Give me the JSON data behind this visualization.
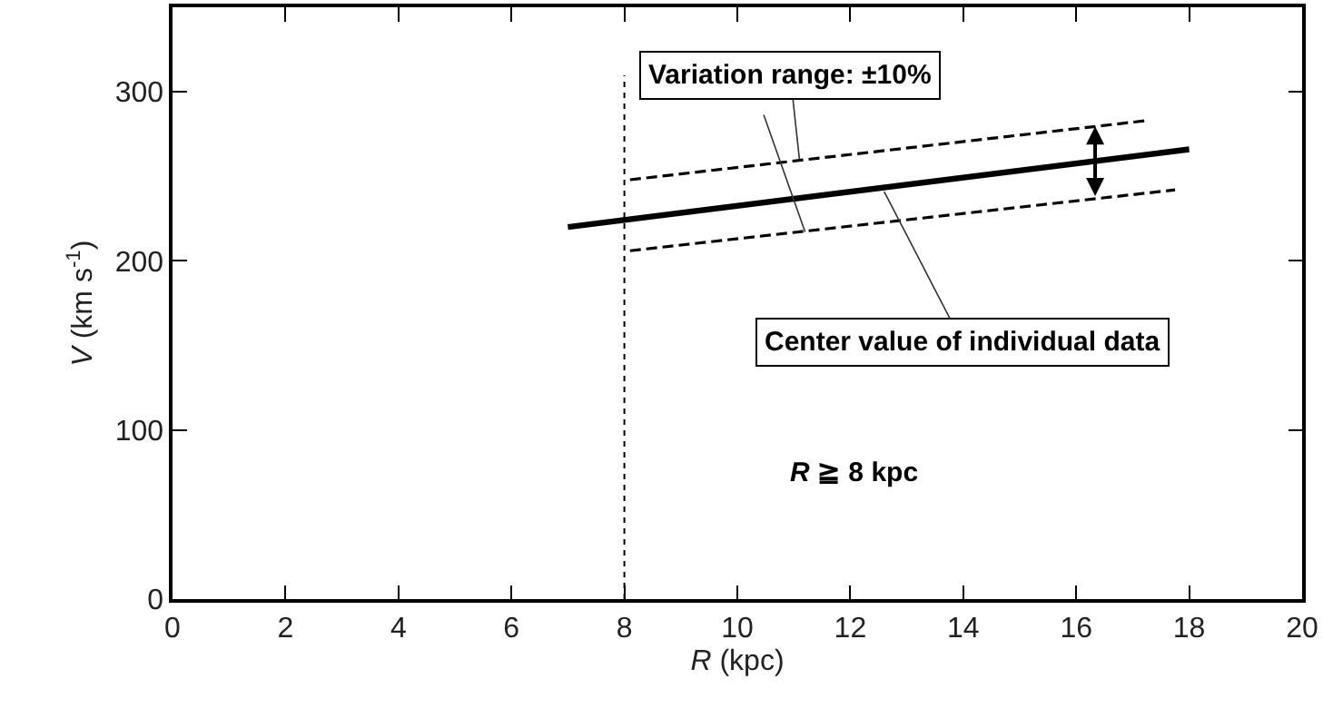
{
  "chart_data": {
    "type": "line",
    "xlabel": "R (kpc)",
    "ylabel": "V (km s$^{-1}$)",
    "xlim": [
      0,
      20
    ],
    "xticks": [
      0,
      2,
      4,
      6,
      8,
      10,
      12,
      14,
      16,
      18,
      20
    ],
    "ylim": [
      0,
      350
    ],
    "yticks": [
      0,
      100,
      200,
      300
    ],
    "series": [
      {
        "color": "#000000",
        "x": [
          7,
          18
        ],
        "values": [
          220,
          266
        ],
        "line_style": "solid"
      },
      {
        "color": "#000000",
        "x": [
          8.1,
          17.25
        ],
        "values": [
          248,
          283
        ],
        "line_style": "dashed"
      },
      {
        "color": "#000000",
        "x": [
          8.1,
          17.75
        ],
        "values": [
          206,
          242
        ],
        "line_style": "dashed"
      }
    ],
    "ref_lines": [
      {
        "axis": "x",
        "value": 8,
        "color": "#000000",
        "line_style": "dotted"
      }
    ],
    "annotations": [
      {
        "text": "Variation range: ±10%",
        "x": 11.1,
        "y": 260
      },
      {
        "text": "Center value of individual data",
        "x": 12.6,
        "y": 241
      },
      "R ≧ 8 kpc"
    ],
    "marker": "none"
  }
}
